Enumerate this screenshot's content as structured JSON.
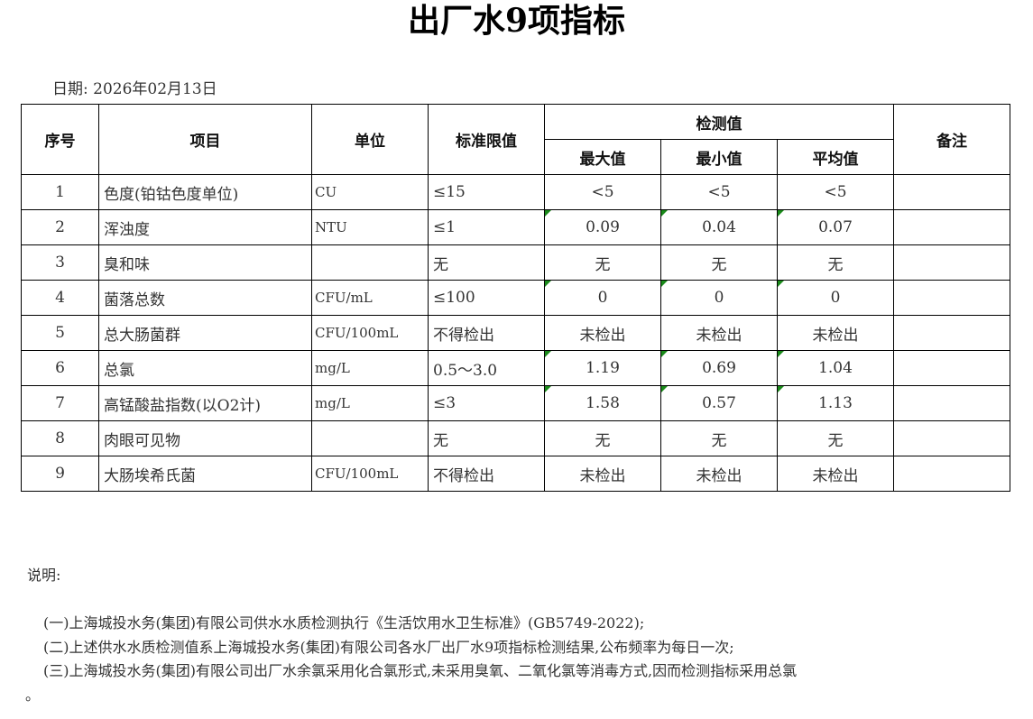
{
  "title": "出厂水9项指标",
  "date": "日期: 2026年02月13日",
  "headers": {
    "no": "序号",
    "item": "项目",
    "unit": "单位",
    "limit": "标准限值",
    "measured": "检测值",
    "max": "最大值",
    "min": "最小值",
    "avg": "平均值",
    "remark": "备注"
  },
  "rows": [
    {
      "no": "1",
      "item": "色度(铂钴色度单位)",
      "unit": "CU",
      "limit": "≤15",
      "max": "<5",
      "min": "<5",
      "avg": "<5",
      "remark": "",
      "flag": false
    },
    {
      "no": "2",
      "item": "浑浊度",
      "unit": "NTU",
      "limit": "≤1",
      "max": "0.09",
      "min": "0.04",
      "avg": "0.07",
      "remark": "",
      "flag": true
    },
    {
      "no": "3",
      "item": "臭和味",
      "unit": "",
      "limit": "无",
      "max": "无",
      "min": "无",
      "avg": "无",
      "remark": "",
      "flag": false
    },
    {
      "no": "4",
      "item": "菌落总数",
      "unit": "CFU/mL",
      "limit": "≤100",
      "max": "0",
      "min": "0",
      "avg": "0",
      "remark": "",
      "flag": true
    },
    {
      "no": "5",
      "item": "总大肠菌群",
      "unit": "CFU/100mL",
      "limit": "不得检出",
      "max": "未检出",
      "min": "未检出",
      "avg": "未检出",
      "remark": "",
      "flag": false
    },
    {
      "no": "6",
      "item": "总氯",
      "unit": "mg/L",
      "limit": "0.5～3.0",
      "max": "1.19",
      "min": "0.69",
      "avg": "1.04",
      "remark": "",
      "flag": true
    },
    {
      "no": "7",
      "item": "高锰酸盐指数(以O2计)",
      "unit": "mg/L",
      "limit": "≤3",
      "max": "1.58",
      "min": "0.57",
      "avg": "1.13",
      "remark": "",
      "flag": true
    },
    {
      "no": "8",
      "item": "肉眼可见物",
      "unit": "",
      "limit": "无",
      "max": "无",
      "min": "无",
      "avg": "无",
      "remark": "",
      "flag": false
    },
    {
      "no": "9",
      "item": "大肠埃希氏菌",
      "unit": "CFU/100mL",
      "limit": "不得检出",
      "max": "未检出",
      "min": "未检出",
      "avg": "未检出",
      "remark": "",
      "flag": false
    }
  ],
  "notes": {
    "heading": "说明:",
    "items": [
      "(一)上海城投水务(集团)有限公司供水水质检测执行《生活饮用水卫生标准》(GB5749-2022);",
      "(二)上述供水水质检测值系上海城投水务(集团)有限公司各水厂出厂水9项指标检测结果,公布频率为每日一次;",
      "(三)上海城投水务(集团)有限公司出厂水余氯采用化合氯形式,未采用臭氧、二氧化氯等消毒方式,因而检测指标采用总氯"
    ],
    "tail": "。"
  },
  "colors": {
    "indicator": "#1a8a1a"
  }
}
